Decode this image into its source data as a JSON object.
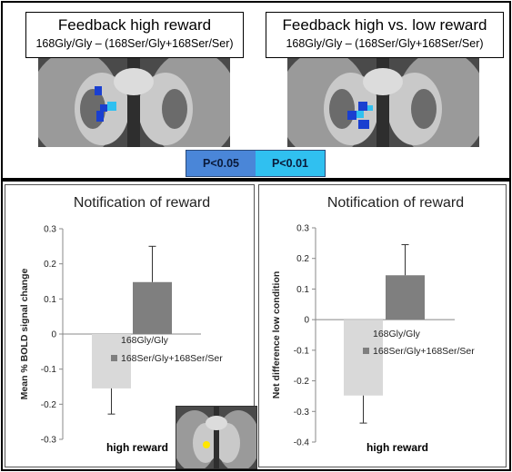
{
  "top": {
    "panel_left": {
      "title": "Feedback high reward",
      "subtitle": "168Gly/Gly – (168Ser/Gly+168Ser/Ser)"
    },
    "panel_right": {
      "title": "Feedback high vs. low reward",
      "subtitle": "168Gly/Gly – (168Ser/Gly+168Ser/Ser)"
    },
    "threshold_legend": [
      {
        "label": "P<0.05",
        "color": "#4a86d8"
      },
      {
        "label": "P<0.01",
        "color": "#30c0f0"
      }
    ]
  },
  "chart_data": [
    {
      "type": "bar",
      "title": "Notification of reward",
      "ylabel": "Mean % BOLD signal change",
      "xlabel": "high reward",
      "ylim": [
        -0.3,
        0.3
      ],
      "yticks": [
        "0.3",
        "0.2",
        "0.1",
        "0",
        "-0.1",
        "-0.2",
        "-0.3"
      ],
      "series": [
        {
          "name": "168Gly/Gly",
          "value": -0.155,
          "error_low": -0.228,
          "color": "#d9d9d9"
        },
        {
          "name": "168Ser/Gly+168Ser/Ser",
          "value": 0.148,
          "error_high": 0.25,
          "color": "#7f7f7f"
        }
      ]
    },
    {
      "type": "bar",
      "title": "Notification of reward",
      "ylabel": "Net difference low condition",
      "xlabel": "high reward",
      "ylim": [
        -0.4,
        0.3
      ],
      "yticks": [
        "0.3",
        "0.2",
        "0.1",
        "0",
        "-0.1",
        "-0.2",
        "-0.3",
        "-0.4"
      ],
      "series": [
        {
          "name": "168Gly/Gly",
          "value": -0.248,
          "error_low": -0.338,
          "color": "#d9d9d9"
        },
        {
          "name": "168Ser/Gly+168Ser/Ser",
          "value": 0.145,
          "error_high": 0.245,
          "color": "#7f7f7f"
        }
      ]
    }
  ],
  "colors": {
    "roi_yellow": "#ffe600",
    "brain_dark": "#3c3c3c"
  }
}
